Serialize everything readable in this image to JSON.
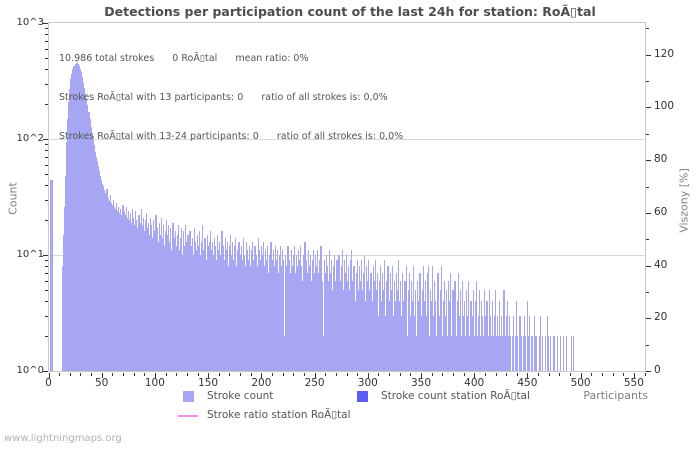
{
  "page": {
    "watermark": "www.lightningmaps.org"
  },
  "chart_data": {
    "type": "bar",
    "title": "Detections per participation count of the last 24h for station: RoÃ▯tal",
    "annotation_lines": [
      "10.986 total strokes      0 RoÃ▯tal      mean ratio: 0%",
      "Strokes RoÃ▯tal with 13 participants: 0      ratio of all strokes is: 0,0%",
      "Strokes RoÃ▯tal with 13-24 participants: 0      ratio of all strokes is: 0,0%"
    ],
    "x_axis": {
      "label": "Participants",
      "min": 0,
      "max": 560,
      "major_ticks": [
        0,
        50,
        100,
        150,
        200,
        250,
        300,
        350,
        400,
        450,
        500,
        550
      ],
      "minor_step": 10
    },
    "y_axis_left": {
      "label": "Count",
      "scale": "log",
      "min": 1,
      "max": 1000,
      "tick_labels": [
        "10^0",
        "10^1",
        "10^2",
        "10^3"
      ]
    },
    "y_axis_right": {
      "label": "Viszony [%]",
      "min": 0,
      "max": 132,
      "major_ticks": [
        0,
        20,
        40,
        60,
        80,
        100,
        120
      ],
      "minor_step": 10
    },
    "grid": {
      "horizontal_decades": [
        1,
        2
      ],
      "color": "#d9d9d9"
    },
    "legend": {
      "items": [
        {
          "label": "Stroke count",
          "color": "#a6a6f2",
          "type": "box"
        },
        {
          "label": "Stroke count station RoÃ▯tal",
          "color": "#5c5cf2",
          "type": "box"
        },
        {
          "label": "Stroke ratio station RoÃ▯tal",
          "color": "#f090ee",
          "type": "line"
        }
      ]
    },
    "series": [
      {
        "name": "Stroke count",
        "color": "#a6a6f2",
        "segments": [
          {
            "start": 1,
            "values": [
              44,
              44,
              44
            ]
          },
          {
            "start": 12,
            "values": [
              8,
              15,
              26,
              48,
              95,
              150,
              210,
              270,
              330,
              365,
              405,
              425,
              445,
              455,
              460,
              443,
              430,
              400,
              375,
              340,
              305,
              275,
              245,
              220,
              195,
              170,
              148,
              128,
              108,
              98,
              88,
              78,
              70,
              64,
              58,
              53,
              48,
              44,
              41,
              39,
              36,
              34,
              37,
              31,
              29,
              33,
              28,
              27,
              30,
              26,
              25,
              28,
              24,
              26,
              23,
              25,
              22,
              27,
              24,
              22,
              26,
              21,
              24,
              20,
              23,
              19,
              25,
              21,
              18,
              24,
              20,
              17,
              22,
              19,
              25,
              18,
              21,
              16,
              20,
              23,
              17,
              19,
              15,
              21,
              18,
              14,
              20,
              16,
              22,
              17,
              13,
              19,
              15,
              21,
              14,
              18,
              12,
              16,
              20,
              15,
              18,
              13,
              17,
              11,
              19,
              14,
              16,
              12,
              15,
              18,
              11,
              14,
              17,
              10,
              16,
              12,
              18,
              13,
              15,
              11,
              16,
              12,
              14,
              10,
              17,
              13,
              11,
              15,
              12,
              16,
              10,
              13,
              18,
              11,
              14,
              9,
              15,
              12,
              13,
              16,
              11,
              13,
              10,
              14,
              12,
              9,
              15,
              11,
              13,
              10,
              16,
              12,
              9,
              14,
              11,
              13,
              8,
              12,
              15,
              10,
              13,
              9,
              12,
              14,
              8,
              11,
              13,
              10,
              12,
              9,
              14,
              10,
              8,
              13,
              11,
              9,
              12,
              8,
              11,
              13,
              9,
              12,
              10,
              8,
              14,
              11,
              9,
              12,
              10,
              13,
              8,
              11,
              9,
              12,
              7,
              10,
              13,
              9,
              11,
              8,
              12,
              9,
              11,
              7,
              10,
              12,
              8,
              11,
              9,
              2,
              10,
              8,
              12,
              9,
              7,
              11,
              8,
              10,
              12,
              7,
              10,
              8,
              11,
              9,
              12,
              8,
              6,
              10,
              13,
              9,
              7,
              11,
              8,
              10,
              6,
              9,
              11,
              7,
              10,
              8,
              11,
              7,
              9,
              12,
              6,
              2,
              9,
              7,
              10,
              8,
              6,
              11,
              7,
              9,
              5,
              8,
              10,
              6,
              9,
              7,
              10,
              6,
              8,
              11,
              5,
              9,
              7,
              10,
              6,
              8,
              5,
              9,
              11,
              6,
              8,
              4,
              7,
              9,
              5,
              8,
              6,
              9,
              5,
              7,
              10,
              4,
              8,
              6,
              9,
              5,
              7,
              4,
              8,
              6,
              9,
              5,
              7,
              3,
              6,
              8,
              4,
              7,
              5,
              9,
              3,
              6,
              8,
              4,
              7,
              5,
              8,
              3,
              6,
              4,
              7,
              5,
              9,
              4,
              6,
              3,
              7,
              4,
              6,
              8,
              2,
              5,
              7,
              3,
              6,
              4,
              8,
              3,
              5,
              2,
              6,
              4,
              7,
              3,
              5,
              8,
              4,
              6,
              3,
              7,
              8,
              2,
              5,
              4,
              8,
              3,
              6,
              4,
              2,
              7,
              3,
              5,
              8,
              2,
              4,
              6,
              3,
              5,
              2,
              6,
              4,
              7,
              2,
              5,
              3,
              6,
              2,
              4,
              7,
              3,
              5,
              2,
              6,
              3,
              4,
              2,
              5,
              3,
              6,
              2,
              4,
              3,
              5,
              2,
              4,
              6,
              2,
              3,
              5,
              2,
              4,
              3,
              2,
              5,
              3,
              4,
              2,
              5,
              3,
              2,
              4,
              2,
              3,
              5,
              2,
              3,
              2,
              4,
              2,
              3,
              2,
              5,
              2,
              3,
              4,
              2,
              3,
              2,
              0,
              2,
              3,
              0,
              2,
              4,
              2,
              0,
              3,
              2,
              0,
              2,
              3,
              2,
              0,
              4,
              2,
              3,
              0,
              2,
              2,
              0,
              3,
              2,
              0,
              0,
              2,
              3,
              0,
              2,
              0,
              0,
              2,
              0,
              3,
              2,
              0,
              2,
              0,
              0,
              2,
              0,
              0,
              2,
              0,
              0,
              2,
              0,
              0,
              2,
              0,
              0,
              2,
              0,
              0,
              0,
              2,
              0,
              2
            ]
          }
        ]
      },
      {
        "name": "Stroke count station RoÃ▯tal",
        "color": "#5c5cf2",
        "segments": []
      },
      {
        "name": "Stroke ratio station RoÃ▯tal",
        "color": "#f090ee",
        "segments": []
      }
    ]
  }
}
